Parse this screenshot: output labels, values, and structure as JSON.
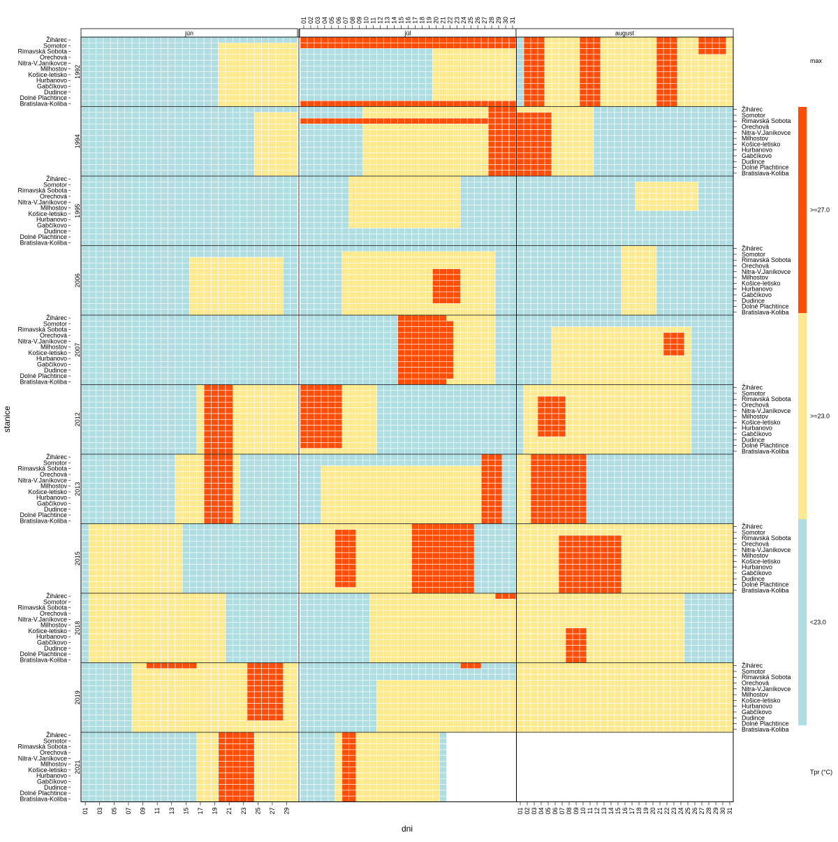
{
  "chart_data": {
    "type": "heatmap",
    "xlabel": "dni",
    "ylabel": "stanice",
    "months": [
      "jún",
      "júl",
      "august"
    ],
    "days_in_month": [
      30,
      31,
      31
    ],
    "years": [
      "1992",
      "1994",
      "1995",
      "2006",
      "2007",
      "2012",
      "2013",
      "2015",
      "2018",
      "2019",
      "2021"
    ],
    "stations": [
      "Žihárec",
      "Somotor",
      "Rimavská Sobota",
      "Orechová",
      "Nitra-V.Janíkovce",
      "Milhostov",
      "Košice-letisko",
      "Hurbanovo",
      "Gabčíkovo",
      "Dudince",
      "Dolné Plachtince",
      "Bratislava-Koliba"
    ],
    "legend": {
      "title": "max",
      "footer": "Tpr (°C)",
      "classes": [
        {
          "label": "<23.0",
          "color": "#b0dde2"
        },
        {
          "label": ">=23.0",
          "color": "#fde98f"
        },
        {
          "label": ">=27.0",
          "color": "#fc4e08"
        }
      ]
    },
    "colors": {
      "cool": "#b0dde2",
      "warm": "#fde98f",
      "hot": "#fc4e08",
      "missing": "#ffffff"
    },
    "hot_spells": [
      [
        "1992",
        1,
        1,
        31,
        0,
        2
      ],
      [
        "1992",
        1,
        1,
        31,
        11,
        12
      ],
      [
        "1992",
        2,
        2,
        4,
        0,
        12
      ],
      [
        "1992",
        2,
        10,
        12,
        0,
        12
      ],
      [
        "1992",
        2,
        21,
        23,
        0,
        12
      ],
      [
        "1992",
        2,
        27,
        30,
        0,
        3
      ],
      [
        "1994",
        1,
        1,
        27,
        2,
        3
      ],
      [
        "1994",
        1,
        28,
        31,
        0,
        12
      ],
      [
        "1994",
        2,
        1,
        5,
        1,
        12
      ],
      [
        "2006",
        1,
        20,
        23,
        4,
        10
      ],
      [
        "2007",
        1,
        15,
        21,
        0,
        12
      ],
      [
        "2007",
        1,
        17,
        22,
        1,
        11
      ],
      [
        "2007",
        2,
        22,
        24,
        3,
        7
      ],
      [
        "2012",
        0,
        18,
        21,
        0,
        12
      ],
      [
        "2012",
        1,
        1,
        6,
        0,
        11
      ],
      [
        "2012",
        2,
        4,
        7,
        2,
        9
      ],
      [
        "2013",
        0,
        18,
        21,
        0,
        12
      ],
      [
        "2013",
        1,
        27,
        29,
        0,
        12
      ],
      [
        "2013",
        2,
        3,
        10,
        0,
        12
      ],
      [
        "2015",
        1,
        6,
        8,
        1,
        11
      ],
      [
        "2015",
        1,
        17,
        25,
        0,
        12
      ],
      [
        "2015",
        2,
        7,
        15,
        2,
        12
      ],
      [
        "2018",
        1,
        29,
        31,
        0,
        1
      ],
      [
        "2018",
        2,
        8,
        10,
        6,
        12
      ],
      [
        "2019",
        0,
        10,
        16,
        0,
        1
      ],
      [
        "2019",
        0,
        24,
        28,
        0,
        10
      ],
      [
        "2019",
        1,
        24,
        26,
        0,
        1
      ],
      [
        "2021",
        0,
        20,
        24,
        0,
        12
      ],
      [
        "2021",
        1,
        7,
        8,
        0,
        12
      ]
    ],
    "warm_spells": [
      [
        "1992",
        0,
        20,
        30,
        1,
        12
      ],
      [
        "1992",
        1,
        20,
        31,
        0,
        12
      ],
      [
        "1992",
        2,
        2,
        31,
        0,
        12
      ],
      [
        "1994",
        0,
        25,
        30,
        1,
        12
      ],
      [
        "1994",
        1,
        10,
        31,
        0,
        12
      ],
      [
        "1994",
        2,
        1,
        11,
        0,
        12
      ],
      [
        "1995",
        1,
        8,
        23,
        0,
        9
      ],
      [
        "1995",
        2,
        18,
        26,
        1,
        6
      ],
      [
        "2006",
        0,
        16,
        28,
        2,
        12
      ],
      [
        "2006",
        1,
        7,
        28,
        1,
        12
      ],
      [
        "2006",
        2,
        16,
        20,
        0,
        12
      ],
      [
        "2007",
        1,
        15,
        28,
        0,
        12
      ],
      [
        "2007",
        2,
        6,
        25,
        2,
        12
      ],
      [
        "2012",
        0,
        17,
        30,
        0,
        12
      ],
      [
        "2012",
        1,
        1,
        11,
        0,
        12
      ],
      [
        "2012",
        2,
        2,
        25,
        0,
        12
      ],
      [
        "2013",
        0,
        14,
        22,
        0,
        12
      ],
      [
        "2013",
        1,
        4,
        29,
        2,
        12
      ],
      [
        "2013",
        2,
        1,
        10,
        0,
        12
      ],
      [
        "2015",
        0,
        2,
        14,
        0,
        12
      ],
      [
        "2015",
        1,
        1,
        25,
        0,
        12
      ],
      [
        "2015",
        2,
        1,
        31,
        0,
        12
      ],
      [
        "2018",
        0,
        2,
        20,
        0,
        12
      ],
      [
        "2018",
        1,
        11,
        31,
        0,
        12
      ],
      [
        "2018",
        2,
        1,
        24,
        0,
        12
      ],
      [
        "2019",
        0,
        8,
        30,
        0,
        12
      ],
      [
        "2019",
        1,
        12,
        31,
        3,
        12
      ],
      [
        "2019",
        2,
        1,
        31,
        0,
        12
      ],
      [
        "2021",
        0,
        17,
        30,
        0,
        12
      ],
      [
        "2021",
        1,
        6,
        20,
        0,
        12
      ]
    ],
    "missing_days": [
      [
        "2021",
        1,
        22,
        31
      ],
      [
        "2021",
        2,
        1,
        31
      ]
    ]
  }
}
